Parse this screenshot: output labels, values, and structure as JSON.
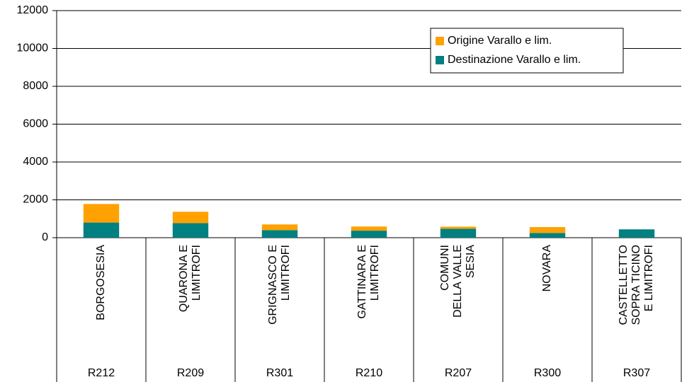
{
  "chart_data": {
    "type": "stacked_bar",
    "categories": [
      [
        "BORGOSESIA"
      ],
      [
        "QUARONA E",
        "LIMITROFI"
      ],
      [
        "GRIGNASCO E",
        "LIMITROFI"
      ],
      [
        "GATTINARA E",
        "LIMITROFI"
      ],
      [
        "COMUNI",
        "DELLA VALLE",
        "SESIA"
      ],
      [
        "NOVARA"
      ],
      [
        "CASTELLETTO",
        "SOPRA TICINO",
        "E LIMITROFI"
      ]
    ],
    "category_codes": [
      "R212",
      "R209",
      "R301",
      "R210",
      "R207",
      "R300",
      "R307"
    ],
    "series": [
      {
        "name": "Origine Varallo e lim.",
        "color": "#ffa100",
        "values": [
          980,
          600,
          300,
          220,
          110,
          310,
          0
        ]
      },
      {
        "name": "Destinazione Varallo e lim.",
        "color": "#008080",
        "values": [
          800,
          770,
          400,
          370,
          470,
          250,
          440
        ]
      }
    ],
    "ylim": [
      0,
      12000
    ],
    "yticks": [
      0,
      2000,
      4000,
      6000,
      8000,
      10000,
      12000
    ],
    "grid": true,
    "legend": "top-right"
  }
}
